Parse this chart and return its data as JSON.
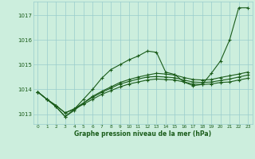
{
  "xlabel": "Graphe pression niveau de la mer (hPa)",
  "background_color": "#cceedd",
  "grid_color": "#99cccc",
  "line_color": "#1a5c1a",
  "xlim": [
    -0.5,
    23.5
  ],
  "ylim": [
    1012.6,
    1017.55
  ],
  "y_ticks": [
    1013,
    1014,
    1015,
    1016,
    1017
  ],
  "x_ticks": [
    0,
    1,
    2,
    3,
    4,
    5,
    6,
    7,
    8,
    9,
    10,
    11,
    12,
    13,
    14,
    15,
    16,
    17,
    18,
    19,
    20,
    21,
    22,
    23
  ],
  "series": [
    [
      1013.9,
      1013.6,
      1013.3,
      1012.9,
      1013.2,
      1013.6,
      1014.0,
      1014.45,
      1014.8,
      1015.0,
      1015.2,
      1015.35,
      1015.55,
      1015.5,
      1014.7,
      1014.6,
      1014.3,
      1014.15,
      1014.2,
      1014.65,
      1015.15,
      1016.0,
      1017.3,
      1017.3
    ],
    [
      1013.9,
      1013.6,
      1013.3,
      1012.9,
      1013.15,
      1013.45,
      1013.72,
      1013.92,
      1014.1,
      1014.28,
      1014.4,
      1014.5,
      1014.58,
      1014.65,
      1014.62,
      1014.58,
      1014.48,
      1014.4,
      1014.38,
      1014.4,
      1014.48,
      1014.55,
      1014.62,
      1014.7
    ],
    [
      1013.9,
      1013.6,
      1013.35,
      1013.05,
      1013.2,
      1013.4,
      1013.6,
      1013.8,
      1013.95,
      1014.1,
      1014.22,
      1014.3,
      1014.38,
      1014.42,
      1014.4,
      1014.38,
      1014.3,
      1014.22,
      1014.2,
      1014.22,
      1014.28,
      1014.3,
      1014.38,
      1014.45
    ],
    [
      1013.9,
      1013.6,
      1013.35,
      1013.05,
      1013.22,
      1013.45,
      1013.68,
      1013.88,
      1014.05,
      1014.22,
      1014.32,
      1014.42,
      1014.5,
      1014.52,
      1014.5,
      1014.47,
      1014.38,
      1014.3,
      1014.28,
      1014.3,
      1014.36,
      1014.42,
      1014.5,
      1014.58
    ]
  ]
}
